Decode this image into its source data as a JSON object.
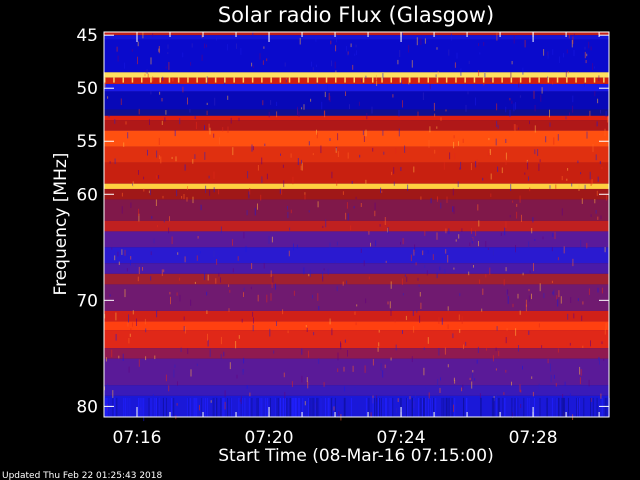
{
  "chart_data": {
    "type": "heatmap",
    "title": "Solar radio Flux (Glasgow)",
    "xlabel": "Start Time (08-Mar-16 07:15:00)",
    "ylabel": "Frequency [MHz]",
    "x_range_minutes": [
      0,
      15.3
    ],
    "x_ticks": [
      {
        "minute": 1,
        "label": "07:16"
      },
      {
        "minute": 5,
        "label": "07:20"
      },
      {
        "minute": 9,
        "label": "07:24"
      },
      {
        "minute": 13,
        "label": "07:28"
      }
    ],
    "y_range_mhz": [
      44.7,
      81.0
    ],
    "y_ticks": [
      45,
      50,
      55,
      60,
      70,
      80
    ],
    "y_axis_inverted": true,
    "bands": [
      {
        "from": 44.7,
        "to": 45.0,
        "color": "#c0201a"
      },
      {
        "from": 45.0,
        "to": 45.4,
        "color": "#1414d8"
      },
      {
        "from": 45.4,
        "to": 48.5,
        "color": "#0a0acc"
      },
      {
        "from": 48.5,
        "to": 49.0,
        "color": "#ffe060"
      },
      {
        "from": 49.0,
        "to": 49.6,
        "color": "#d02010"
      },
      {
        "from": 49.6,
        "to": 50.3,
        "color": "#1a1ae8"
      },
      {
        "from": 50.3,
        "to": 52.0,
        "color": "#0808b8"
      },
      {
        "from": 52.0,
        "to": 52.6,
        "color": "#101090"
      },
      {
        "from": 52.6,
        "to": 53.0,
        "color": "#e02010"
      },
      {
        "from": 53.0,
        "to": 54.0,
        "color": "#b01818"
      },
      {
        "from": 54.0,
        "to": 55.5,
        "color": "#ff5010"
      },
      {
        "from": 55.5,
        "to": 57.0,
        "color": "#e03010"
      },
      {
        "from": 57.0,
        "to": 59.0,
        "color": "#c82010"
      },
      {
        "from": 59.0,
        "to": 59.5,
        "color": "#ffd040"
      },
      {
        "from": 59.5,
        "to": 60.5,
        "color": "#a01818"
      },
      {
        "from": 60.5,
        "to": 62.5,
        "color": "#80184a"
      },
      {
        "from": 62.5,
        "to": 63.5,
        "color": "#c02020"
      },
      {
        "from": 63.5,
        "to": 65.0,
        "color": "#5a1a9a"
      },
      {
        "from": 65.0,
        "to": 66.5,
        "color": "#2a1ad0"
      },
      {
        "from": 66.5,
        "to": 67.5,
        "color": "#4a1aa8"
      },
      {
        "from": 67.5,
        "to": 68.5,
        "color": "#a02030"
      },
      {
        "from": 68.5,
        "to": 71.0,
        "color": "#701a70"
      },
      {
        "from": 71.0,
        "to": 72.0,
        "color": "#d02018"
      },
      {
        "from": 72.0,
        "to": 72.8,
        "color": "#ff4010"
      },
      {
        "from": 72.8,
        "to": 74.5,
        "color": "#e02818"
      },
      {
        "from": 74.5,
        "to": 75.5,
        "color": "#901a50"
      },
      {
        "from": 75.5,
        "to": 78.0,
        "color": "#5a1a98"
      },
      {
        "from": 78.0,
        "to": 79.0,
        "color": "#3a1ab8"
      },
      {
        "from": 79.0,
        "to": 81.0,
        "color": "#1a18d8"
      }
    ]
  },
  "footer": {
    "updated": "Updated Thu Feb 22 01:25:43 2018"
  }
}
